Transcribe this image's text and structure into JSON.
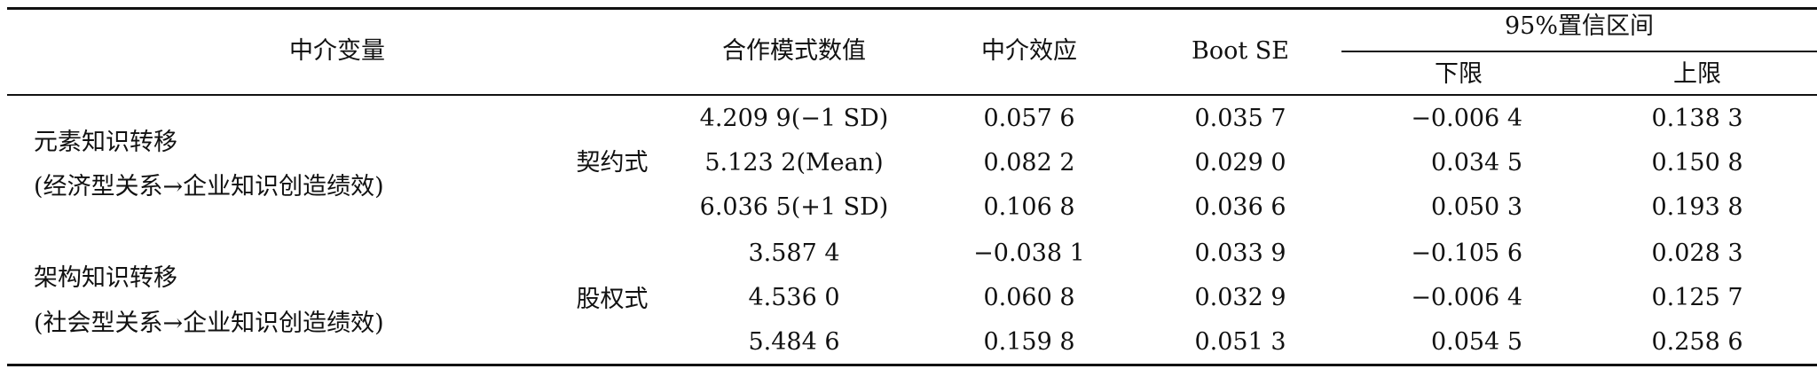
{
  "headers": {
    "mediator": "中介变量",
    "mode_value": "合作模式数值",
    "effect": "中介效应",
    "boot_se": "Boot SE",
    "ci": "95%置信区间",
    "lower": "下限",
    "upper": "上限"
  },
  "groups": [
    {
      "mediator_line1": "元素知识转移",
      "mediator_line2": "(经济型关系→企业知识创造绩效)",
      "mode": "契约式",
      "rows": [
        {
          "value": "4.209 9(−1 SD)",
          "effect": "0.057 6",
          "se": "0.035 7",
          "lower": "−0.006 4",
          "upper": "0.138 3"
        },
        {
          "value": "5.123 2(Mean)",
          "effect": "0.082 2",
          "se": "0.029 0",
          "lower": "0.034 5",
          "upper": "0.150 8"
        },
        {
          "value": "6.036 5(+1 SD)",
          "effect": "0.106 8",
          "se": "0.036 6",
          "lower": "0.050 3",
          "upper": "0.193 8"
        }
      ]
    },
    {
      "mediator_line1": "架构知识转移",
      "mediator_line2": "(社会型关系→企业知识创造绩效)",
      "mode": "股权式",
      "rows": [
        {
          "value": "3.587 4",
          "effect": "−0.038 1",
          "se": "0.033 9",
          "lower": "−0.105 6",
          "upper": "0.028 3"
        },
        {
          "value": "4.536 0",
          "effect": "0.060 8",
          "se": "0.032 9",
          "lower": "−0.006 4",
          "upper": "0.125 7"
        },
        {
          "value": "5.484 6",
          "effect": "0.159 8",
          "se": "0.051 3",
          "lower": "0.054 5",
          "upper": "0.258 6"
        }
      ]
    }
  ]
}
